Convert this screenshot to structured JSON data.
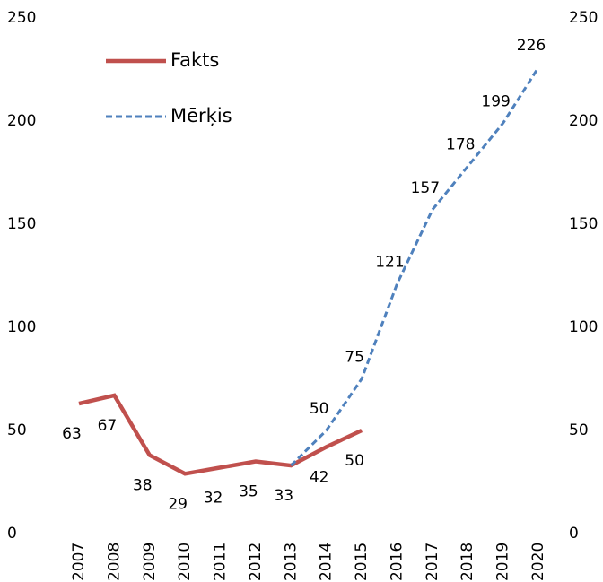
{
  "chart_data": {
    "type": "line",
    "categories": [
      "2007",
      "2008",
      "2009",
      "2010",
      "2011",
      "2012",
      "2013",
      "2014",
      "2015",
      "2016",
      "2017",
      "2018",
      "2019",
      "2020"
    ],
    "series": [
      {
        "name": "Fakts",
        "color": "#c0504d",
        "dash": false,
        "values": [
          63,
          67,
          38,
          29,
          32,
          35,
          33,
          42,
          50,
          null,
          null,
          null,
          null,
          null
        ]
      },
      {
        "name": "Mērķis",
        "color": "#4f81bd",
        "dash": true,
        "values": [
          null,
          null,
          null,
          null,
          null,
          null,
          33,
          50,
          75,
          121,
          157,
          178,
          199,
          226
        ],
        "value_labels": [
          null,
          null,
          null,
          null,
          null,
          null,
          null,
          "50",
          "75",
          "121",
          "157",
          "178",
          "199",
          "226"
        ]
      }
    ],
    "ylim": [
      0,
      250
    ],
    "yticks": [
      0,
      50,
      100,
      150,
      200,
      250
    ],
    "y2lim": [
      0,
      250
    ],
    "y2ticks": [
      0,
      50,
      100,
      150,
      200,
      250
    ],
    "grid": false,
    "legend": "top-left"
  }
}
